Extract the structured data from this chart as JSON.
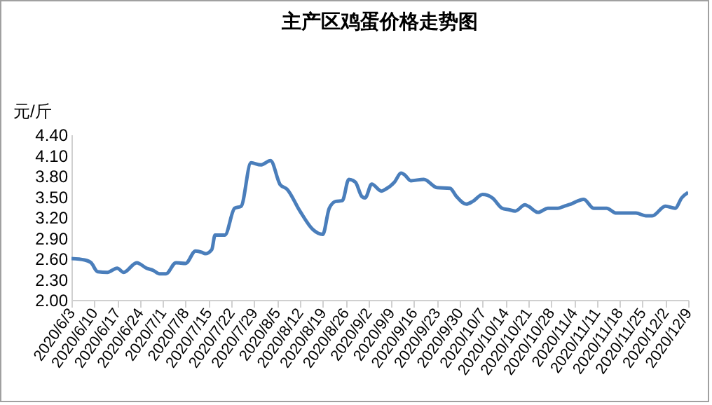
{
  "chart_data": {
    "type": "line",
    "title": "主产区鸡蛋价格走势图",
    "ylabel": "元/斤",
    "color": "#4a7ebb",
    "grid": false,
    "marker": "none",
    "line_style": "solid",
    "x": [
      "2020-06-03",
      "2020-06-07",
      "2020-06-09",
      "2020-06-11",
      "2020-06-14",
      "2020-06-17",
      "2020-06-19",
      "2020-06-23",
      "2020-06-26",
      "2020-06-28",
      "2020-06-30",
      "2020-07-02",
      "2020-07-05",
      "2020-07-08",
      "2020-07-11",
      "2020-07-13",
      "2020-07-14",
      "2020-07-16",
      "2020-07-17",
      "2020-07-20",
      "2020-07-23",
      "2020-07-25",
      "2020-07-28",
      "2020-07-31",
      "2020-08-03",
      "2020-08-06",
      "2020-08-08",
      "2020-08-12",
      "2020-08-16",
      "2020-08-19",
      "2020-08-21",
      "2020-08-23",
      "2020-08-25",
      "2020-08-27",
      "2020-08-29",
      "2020-08-31",
      "2020-09-01",
      "2020-09-03",
      "2020-09-06",
      "2020-09-07",
      "2020-09-10",
      "2020-09-12",
      "2020-09-13",
      "2020-09-15",
      "2020-09-19",
      "2020-09-23",
      "2020-09-27",
      "2020-09-29",
      "2020-10-02",
      "2020-10-04",
      "2020-10-07",
      "2020-10-10",
      "2020-10-13",
      "2020-10-15",
      "2020-10-17",
      "2020-10-20",
      "2020-10-21",
      "2020-10-24",
      "2020-10-27",
      "2020-10-30",
      "2020-11-01",
      "2020-11-03",
      "2020-11-07",
      "2020-11-10",
      "2020-11-14",
      "2020-11-17",
      "2020-11-23",
      "2020-11-26",
      "2020-11-28",
      "2020-12-02",
      "2020-12-05",
      "2020-12-07",
      "2020-12-09"
    ],
    "values": [
      2.6,
      2.58,
      2.54,
      2.41,
      2.4,
      2.46,
      2.4,
      2.54,
      2.46,
      2.43,
      2.38,
      2.38,
      2.54,
      2.53,
      2.71,
      2.69,
      2.67,
      2.73,
      2.94,
      2.94,
      3.33,
      3.36,
      3.99,
      3.96,
      4.02,
      3.67,
      3.61,
      3.29,
      3.02,
      2.95,
      3.33,
      3.43,
      3.44,
      3.75,
      3.71,
      3.5,
      3.48,
      3.68,
      3.58,
      3.6,
      3.71,
      3.84,
      3.82,
      3.73,
      3.75,
      3.63,
      3.62,
      3.5,
      3.39,
      3.43,
      3.53,
      3.48,
      3.33,
      3.31,
      3.29,
      3.38,
      3.36,
      3.27,
      3.33,
      3.33,
      3.36,
      3.39,
      3.46,
      3.33,
      3.33,
      3.26,
      3.26,
      3.22,
      3.22,
      3.36,
      3.33,
      3.48,
      3.56
    ],
    "xlim": [
      "2020-06-03",
      "2020-12-09"
    ],
    "xticks": [
      {
        "value": "2020-06-03",
        "label": "2020/6/3"
      },
      {
        "value": "2020-06-10",
        "label": "2020/6/10"
      },
      {
        "value": "2020-06-17",
        "label": "2020/6/17"
      },
      {
        "value": "2020-06-24",
        "label": "2020/6/24"
      },
      {
        "value": "2020-07-01",
        "label": "2020/7/1"
      },
      {
        "value": "2020-07-08",
        "label": "2020/7/8"
      },
      {
        "value": "2020-07-15",
        "label": "2020/7/15"
      },
      {
        "value": "2020-07-22",
        "label": "2020/7/22"
      },
      {
        "value": "2020-07-29",
        "label": "2020/7/29"
      },
      {
        "value": "2020-08-05",
        "label": "2020/8/5"
      },
      {
        "value": "2020-08-12",
        "label": "2020/8/12"
      },
      {
        "value": "2020-08-19",
        "label": "2020/8/19"
      },
      {
        "value": "2020-08-26",
        "label": "2020/8/26"
      },
      {
        "value": "2020-09-02",
        "label": "2020/9/2"
      },
      {
        "value": "2020-09-09",
        "label": "2020/9/9"
      },
      {
        "value": "2020-09-16",
        "label": "2020/9/16"
      },
      {
        "value": "2020-09-23",
        "label": "2020/9/23"
      },
      {
        "value": "2020-09-30",
        "label": "2020/9/30"
      },
      {
        "value": "2020-10-07",
        "label": "2020/10/7"
      },
      {
        "value": "2020-10-14",
        "label": "2020/10/14"
      },
      {
        "value": "2020-10-21",
        "label": "2020/10/21"
      },
      {
        "value": "2020-10-28",
        "label": "2020/10/28"
      },
      {
        "value": "2020-11-04",
        "label": "2020/11/4"
      },
      {
        "value": "2020-11-11",
        "label": "2020/11/11"
      },
      {
        "value": "2020-11-18",
        "label": "2020/11/18"
      },
      {
        "value": "2020-11-25",
        "label": "2020/11/25"
      },
      {
        "value": "2020-12-02",
        "label": "2020/12/2"
      },
      {
        "value": "2020-12-09",
        "label": "2020/12/9"
      }
    ],
    "ylim": [
      2.0,
      4.4
    ],
    "yticks": [
      {
        "value": 2.0,
        "label": "2.00"
      },
      {
        "value": 2.3,
        "label": "2.30"
      },
      {
        "value": 2.6,
        "label": "2.60"
      },
      {
        "value": 2.9,
        "label": "2.90"
      },
      {
        "value": 3.2,
        "label": "3.20"
      },
      {
        "value": 3.5,
        "label": "3.50"
      },
      {
        "value": 3.8,
        "label": "3.80"
      },
      {
        "value": 4.1,
        "label": "4.10"
      },
      {
        "value": 4.4,
        "label": "4.40"
      }
    ]
  }
}
